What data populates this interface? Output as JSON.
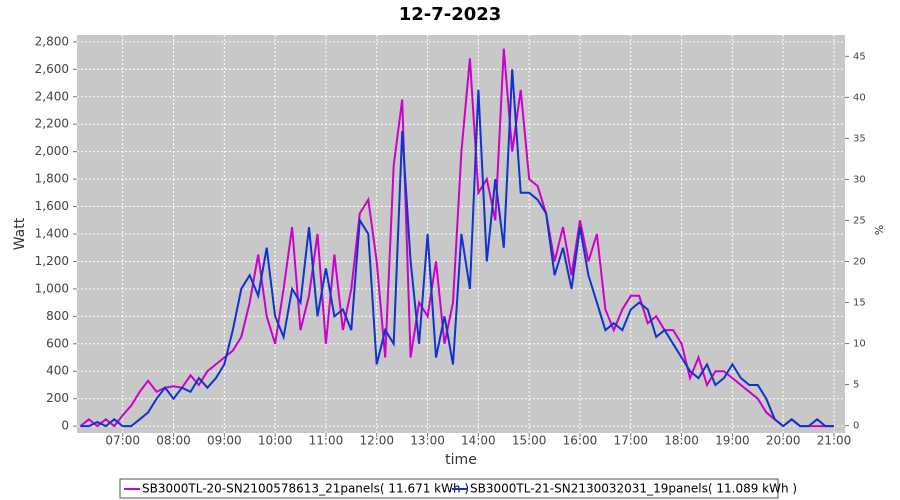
{
  "chart_data": {
    "type": "line",
    "title": "12-7-2023",
    "xlabel": "time",
    "ylabel": "Watt",
    "y2label": "%",
    "x": [
      "06:10",
      "06:20",
      "06:30",
      "06:40",
      "06:50",
      "07:00",
      "07:10",
      "07:20",
      "07:30",
      "07:40",
      "07:50",
      "08:00",
      "08:10",
      "08:20",
      "08:30",
      "08:40",
      "08:50",
      "09:00",
      "09:10",
      "09:20",
      "09:30",
      "09:40",
      "09:50",
      "10:00",
      "10:10",
      "10:20",
      "10:30",
      "10:40",
      "10:50",
      "11:00",
      "11:10",
      "11:20",
      "11:30",
      "11:40",
      "11:50",
      "12:00",
      "12:10",
      "12:20",
      "12:30",
      "12:40",
      "12:50",
      "13:00",
      "13:10",
      "13:20",
      "13:30",
      "13:40",
      "13:50",
      "14:00",
      "14:10",
      "14:20",
      "14:30",
      "14:40",
      "14:50",
      "15:00",
      "15:10",
      "15:20",
      "15:30",
      "15:40",
      "15:50",
      "16:00",
      "16:10",
      "16:20",
      "16:30",
      "16:40",
      "16:50",
      "17:00",
      "17:10",
      "17:20",
      "17:30",
      "17:40",
      "17:50",
      "18:00",
      "18:10",
      "18:20",
      "18:30",
      "18:40",
      "18:50",
      "19:00",
      "19:10",
      "19:20",
      "19:30",
      "19:40",
      "19:50",
      "20:00",
      "20:10",
      "20:20",
      "20:30",
      "20:40",
      "20:50",
      "21:00"
    ],
    "series": [
      {
        "name": "SB3000TL-20-SN2100578613_21panels( 11.671 kWh )",
        "color": "#cc00cc",
        "values": [
          0,
          50,
          0,
          50,
          0,
          80,
          150,
          250,
          330,
          250,
          280,
          290,
          280,
          370,
          300,
          400,
          450,
          500,
          550,
          650,
          900,
          1250,
          800,
          600,
          1000,
          1450,
          700,
          950,
          1400,
          600,
          1250,
          700,
          1000,
          1550,
          1650,
          1200,
          500,
          1900,
          2380,
          500,
          900,
          800,
          1200,
          600,
          900,
          2000,
          2680,
          1700,
          1800,
          1500,
          2750,
          2000,
          2450,
          1800,
          1750,
          1550,
          1200,
          1450,
          1100,
          1500,
          1200,
          1400,
          850,
          700,
          850,
          950,
          950,
          750,
          800,
          700,
          700,
          600,
          350,
          500,
          300,
          400,
          400,
          350,
          300,
          250,
          200,
          100,
          50,
          0,
          50,
          0,
          0,
          0,
          0,
          0
        ]
      },
      {
        "name": "SB3000TL-21-SN2130032031_19panels( 11.089 kWh )",
        "color": "#1133cc",
        "values": [
          0,
          0,
          30,
          0,
          50,
          0,
          0,
          50,
          100,
          200,
          280,
          200,
          280,
          250,
          350,
          280,
          350,
          450,
          700,
          1000,
          1100,
          950,
          1300,
          800,
          650,
          1000,
          900,
          1450,
          800,
          1150,
          800,
          850,
          700,
          1500,
          1400,
          450,
          700,
          600,
          2150,
          1200,
          600,
          1400,
          500,
          800,
          450,
          1400,
          1000,
          2450,
          1200,
          1800,
          1300,
          2600,
          1700,
          1700,
          1650,
          1550,
          1100,
          1300,
          1000,
          1450,
          1100,
          900,
          700,
          750,
          700,
          850,
          900,
          850,
          650,
          700,
          600,
          500,
          400,
          350,
          450,
          300,
          350,
          450,
          350,
          300,
          300,
          200,
          50,
          0,
          50,
          0,
          0,
          50,
          0,
          0
        ]
      }
    ],
    "xlim": [
      "06:06",
      "21:13"
    ],
    "xticks": [
      "07:00",
      "08:00",
      "09:00",
      "10:00",
      "11:00",
      "12:00",
      "13:00",
      "14:00",
      "15:00",
      "16:00",
      "17:00",
      "18:00",
      "19:00",
      "20:00",
      "21:00"
    ],
    "ylim": [
      -50,
      2850
    ],
    "yticks": [
      0,
      200,
      400,
      600,
      800,
      {
        "value": 1000,
        "label": "1,000"
      },
      {
        "value": 1200,
        "label": "1,200"
      },
      {
        "value": 1400,
        "label": "1,400"
      },
      {
        "value": 1600,
        "label": "1,600"
      },
      {
        "value": 1800,
        "label": "1,800"
      },
      {
        "value": 2000,
        "label": "2,000"
      },
      {
        "value": 2200,
        "label": "2,200"
      },
      {
        "value": 2400,
        "label": "2,400"
      },
      {
        "value": 2600,
        "label": "2,600"
      },
      {
        "value": 2800,
        "label": "2,800"
      }
    ],
    "y2lim": [
      -0.9,
      47.6
    ],
    "y2ticks": [
      0,
      5,
      10,
      15,
      20,
      25,
      30,
      35,
      40,
      45
    ],
    "grid": true
  }
}
